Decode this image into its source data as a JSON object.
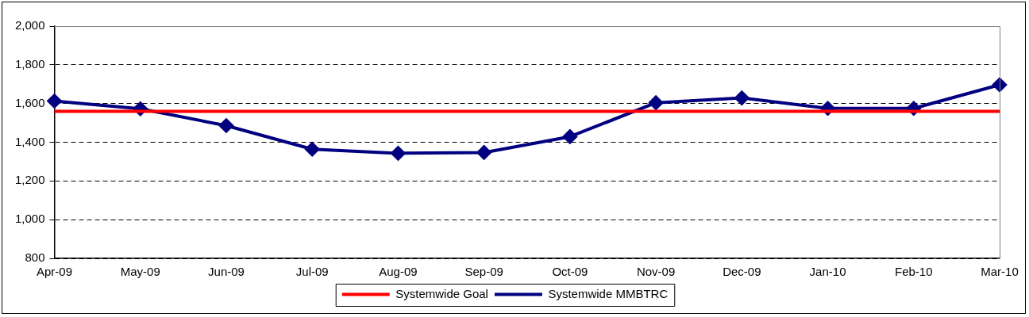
{
  "chart_data": {
    "type": "line",
    "categories": [
      "Apr-09",
      "May-09",
      "Jun-09",
      "Jul-09",
      "Aug-09",
      "Sep-09",
      "Oct-09",
      "Nov-09",
      "Dec-09",
      "Jan-10",
      "Feb-10",
      "Mar-10"
    ],
    "series": [
      {
        "name": "Systemwide Goal",
        "color": "#ff0000",
        "marker": "none",
        "values": [
          1560,
          1560,
          1560,
          1560,
          1560,
          1560,
          1560,
          1560,
          1560,
          1560,
          1560,
          1560
        ]
      },
      {
        "name": "Systemwide MMBTRC",
        "color": "#000080",
        "marker": "diamond",
        "values": [
          1613,
          1573,
          1486,
          1364,
          1343,
          1347,
          1429,
          1604,
          1629,
          1575,
          1575,
          1697
        ]
      }
    ],
    "ylim": [
      800,
      2000
    ],
    "yticks": [
      800,
      {
        "value": 1000,
        "label": "1,000"
      },
      {
        "value": 1200,
        "label": "1,200"
      },
      {
        "value": 1400,
        "label": "1,400"
      },
      {
        "value": 1600,
        "label": "1,600"
      },
      {
        "value": 1800,
        "label": "1,800"
      },
      {
        "value": 2000,
        "label": "2,000"
      }
    ],
    "grid": "y",
    "legend": "bottom",
    "line_style": "solid"
  }
}
